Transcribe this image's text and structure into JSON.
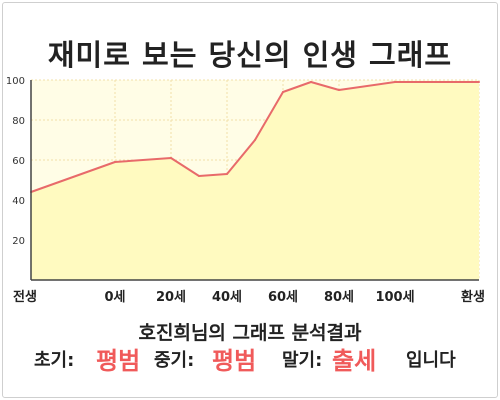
{
  "title": "재미로 보는 당신의 인생 그래프",
  "summary": {
    "heading": "호진희님의 그래프 분석결과",
    "early_label": "초기:",
    "early_value": "평범",
    "mid_label": "중기:",
    "mid_value": "평범",
    "late_label": "말기:",
    "late_value": "출세",
    "ending": "입니다"
  },
  "colors": {
    "line": "#e86a6a",
    "fill": "#fffac0",
    "plot_bg": "#fffde6",
    "grid": "#f0e0a8",
    "accent_text": "#f05a5a"
  },
  "chart_data": {
    "type": "area",
    "title": "재미로 보는 당신의 인생 그래프",
    "xlabel": "",
    "ylabel": "",
    "x_ticks": [
      "전생",
      "0세",
      "20세",
      "40세",
      "60세",
      "80세",
      "100세",
      "환생"
    ],
    "y_ticks": [
      "20",
      "40",
      "60",
      "80",
      "100"
    ],
    "ylim": [
      0,
      100
    ],
    "grid": true,
    "points": [
      {
        "x": -30,
        "y": 44
      },
      {
        "x": 0,
        "y": 59
      },
      {
        "x": 20,
        "y": 61
      },
      {
        "x": 30,
        "y": 52
      },
      {
        "x": 40,
        "y": 53
      },
      {
        "x": 50,
        "y": 70
      },
      {
        "x": 60,
        "y": 94
      },
      {
        "x": 70,
        "y": 99
      },
      {
        "x": 80,
        "y": 95
      },
      {
        "x": 100,
        "y": 99
      },
      {
        "x": 130,
        "y": 99
      }
    ]
  }
}
